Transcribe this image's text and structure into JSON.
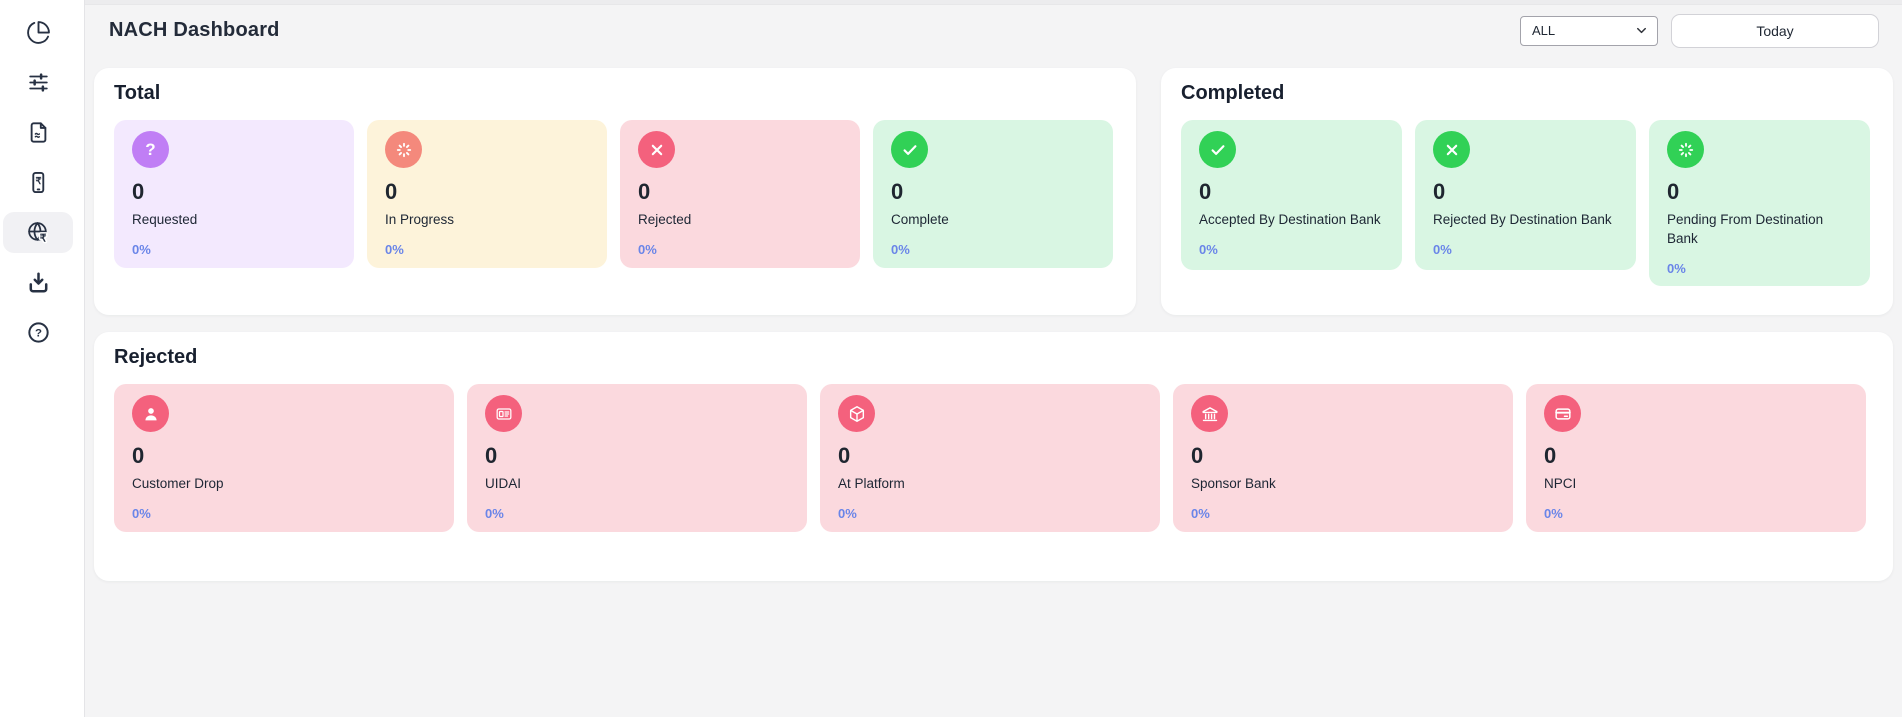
{
  "app_title": "NACH Dashboard",
  "header": {
    "filter": {
      "value": "ALL"
    },
    "today_label": "Today"
  },
  "sidebar": {
    "items": [
      {
        "icon": "pie-chart-icon",
        "active": false
      },
      {
        "icon": "sliders-icon",
        "active": false
      },
      {
        "icon": "document-icon",
        "active": false
      },
      {
        "icon": "mobile-rupee-icon",
        "active": false
      },
      {
        "icon": "globe-rupee-icon",
        "active": true
      },
      {
        "icon": "download-icon",
        "active": false
      },
      {
        "icon": "help-icon",
        "active": false
      }
    ]
  },
  "colors": {
    "percent_text": "#6a85e8",
    "status_green": "#31d156",
    "status_pink": "#f4617d",
    "status_purple": "#c07ef5",
    "status_salmon": "#f4897c",
    "bg_green": "#d9f6e3",
    "bg_pink": "#fbd9de",
    "bg_purple": "#f3e9fe",
    "bg_cream": "#fdf3da"
  },
  "sections": {
    "total": {
      "title": "Total",
      "cards": [
        {
          "icon": "question-icon",
          "value": "0",
          "label": "Requested",
          "percent": "0%",
          "bg": "#f3e9fe",
          "circle": "#c07ef5"
        },
        {
          "icon": "spinner-icon",
          "value": "0",
          "label": "In Progress",
          "percent": "0%",
          "bg": "#fdf3da",
          "circle": "#f4897c"
        },
        {
          "icon": "x-icon",
          "value": "0",
          "label": "Rejected",
          "percent": "0%",
          "bg": "#fbd9de",
          "circle": "#f4617d"
        },
        {
          "icon": "check-icon",
          "value": "0",
          "label": "Complete",
          "percent": "0%",
          "bg": "#d9f6e3",
          "circle": "#31d156"
        }
      ]
    },
    "completed": {
      "title": "Completed",
      "cards": [
        {
          "icon": "check-icon",
          "value": "0",
          "label": "Accepted By Destination Bank",
          "percent": "0%",
          "bg": "#d9f6e3",
          "circle": "#31d156"
        },
        {
          "icon": "x-icon",
          "value": "0",
          "label": "Rejected By Destination Bank",
          "percent": "0%",
          "bg": "#d9f6e3",
          "circle": "#31d156"
        },
        {
          "icon": "spinner-icon",
          "value": "0",
          "label": "Pending From Destination Bank",
          "percent": "0%",
          "bg": "#d9f6e3",
          "circle": "#31d156"
        }
      ]
    },
    "rejected": {
      "title": "Rejected",
      "cards": [
        {
          "icon": "person-icon",
          "value": "0",
          "label": "Customer Drop",
          "percent": "0%",
          "bg": "#fbd9de",
          "circle": "#f4617d"
        },
        {
          "icon": "id-card-icon",
          "value": "0",
          "label": "UIDAI",
          "percent": "0%",
          "bg": "#fbd9de",
          "circle": "#f4617d"
        },
        {
          "icon": "package-icon",
          "value": "0",
          "label": "At Platform",
          "percent": "0%",
          "bg": "#fbd9de",
          "circle": "#f4617d"
        },
        {
          "icon": "bank-icon",
          "value": "0",
          "label": "Sponsor Bank",
          "percent": "0%",
          "bg": "#fbd9de",
          "circle": "#f4617d"
        },
        {
          "icon": "credit-card-icon",
          "value": "0",
          "label": "NPCI",
          "percent": "0%",
          "bg": "#fbd9de",
          "circle": "#f4617d"
        }
      ]
    }
  }
}
